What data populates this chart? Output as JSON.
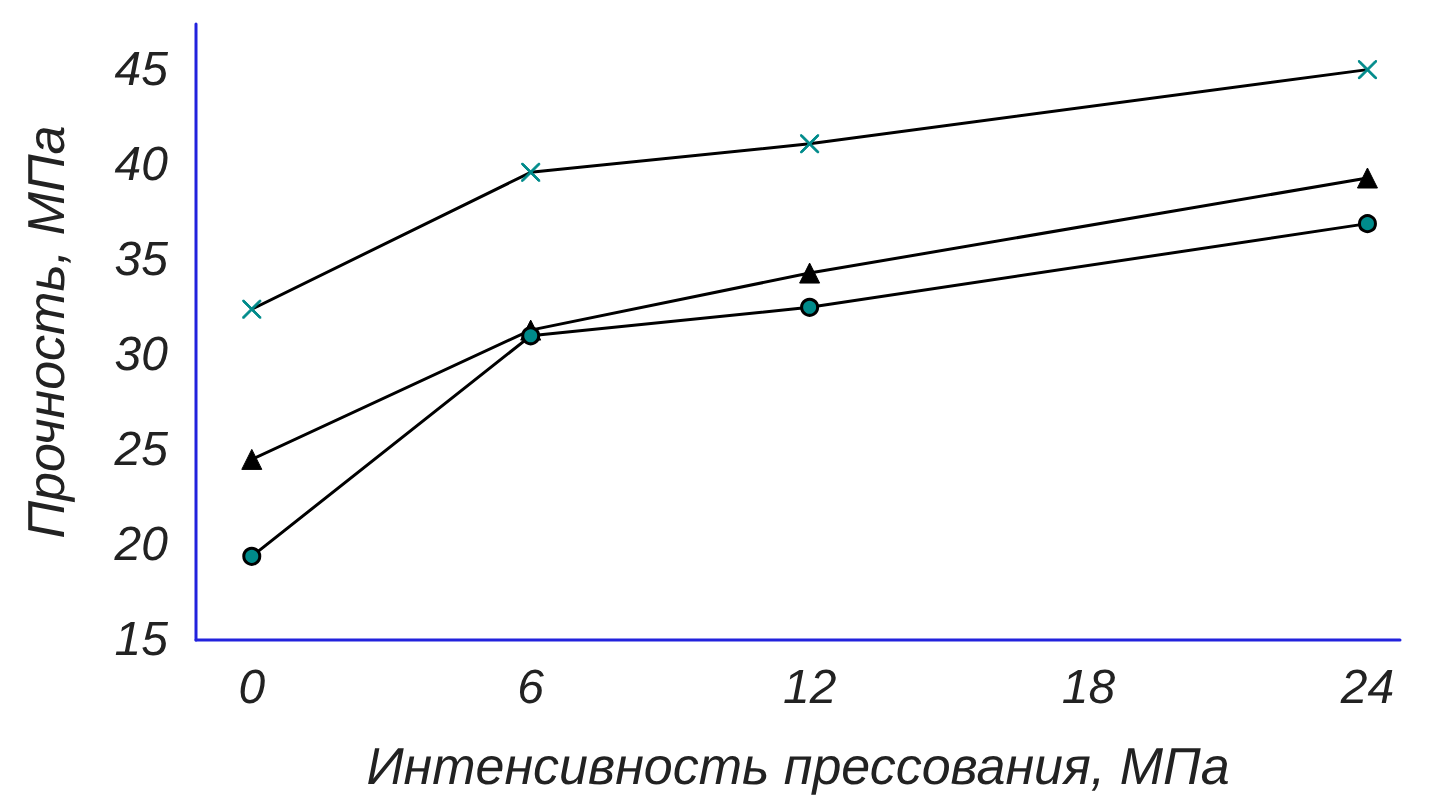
{
  "chart_data": {
    "type": "line",
    "xlabel": "Интенсивность прессования, МПа",
    "ylabel": "Прочность, МПа",
    "x": [
      0,
      6,
      12,
      24
    ],
    "xlim": [
      -1.2,
      24.7
    ],
    "xticks": [
      0,
      6,
      12,
      18,
      24
    ],
    "ylim": [
      15,
      47.4
    ],
    "yticks": [
      15,
      20,
      25,
      30,
      35,
      40,
      45
    ],
    "grid": false,
    "series": [
      {
        "color": "#008b8b",
        "marker": "cross",
        "values": [
          32.4,
          39.6,
          41.1,
          45
        ]
      },
      {
        "color": "#000000",
        "marker": "triangle",
        "values": [
          24.5,
          31.3,
          34.3,
          39.3
        ]
      },
      {
        "color": "#008b8b",
        "marker": "circle",
        "values": [
          19.4,
          31.0,
          32.5,
          36.9
        ]
      }
    ]
  }
}
